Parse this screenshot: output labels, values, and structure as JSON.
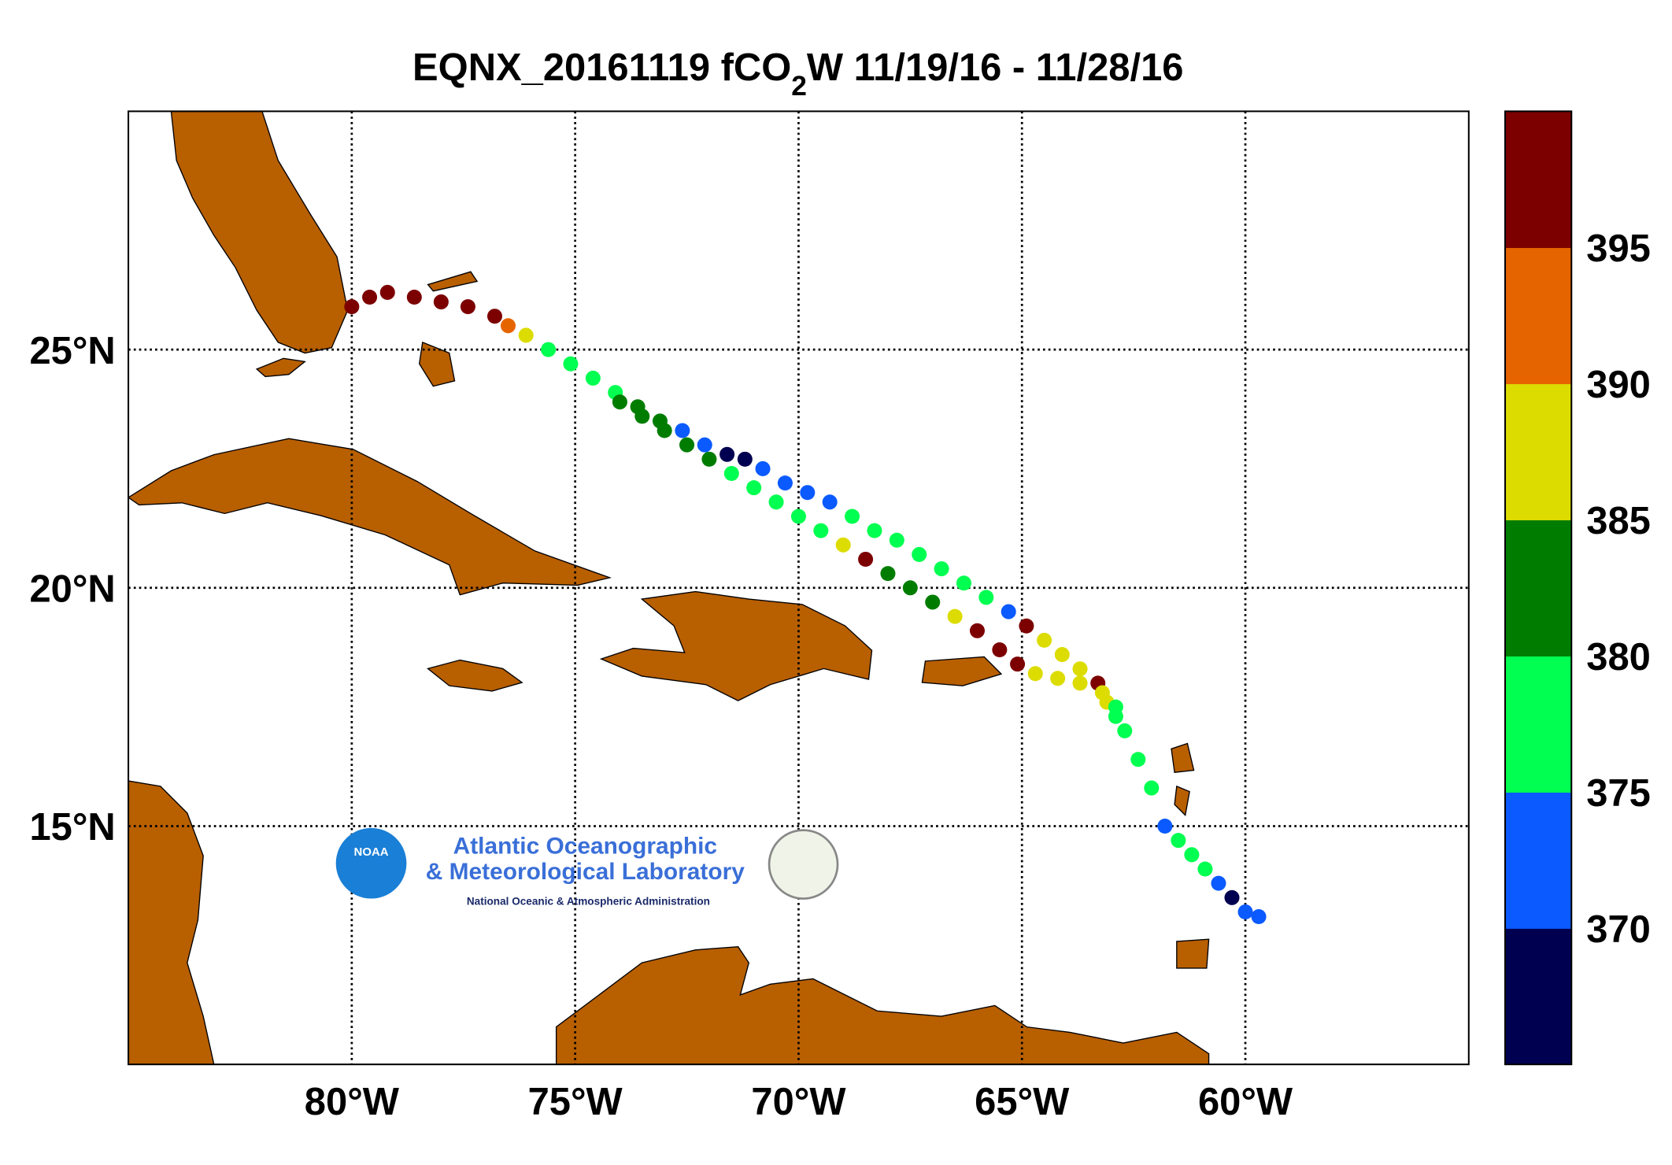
{
  "chart_data": {
    "type": "track-map",
    "title": {
      "prefix": "EQNX_20161119 fCO",
      "subscript": "2",
      "suffix": "W 11/19/16 - 11/28/16"
    },
    "xlim": [
      -85,
      -55
    ],
    "ylim": [
      10,
      30
    ],
    "xticks": [
      {
        "value": -80,
        "label": "80°W"
      },
      {
        "value": -75,
        "label": "75°W"
      },
      {
        "value": -70,
        "label": "70°W"
      },
      {
        "value": -65,
        "label": "65°W"
      },
      {
        "value": -60,
        "label": "60°W"
      }
    ],
    "yticks": [
      {
        "value": 15,
        "label": "15°N"
      },
      {
        "value": 20,
        "label": "20°N"
      },
      {
        "value": 25,
        "label": "25°N"
      }
    ],
    "grid": true,
    "colorbar": {
      "lim": [
        365,
        400
      ],
      "ticks": [
        370,
        375,
        380,
        385,
        390,
        395
      ],
      "colors": [
        "#000050",
        "#0a5aff",
        "#00ff50",
        "#007d00",
        "#dcdc00",
        "#e66400",
        "#7d0000"
      ]
    },
    "tracks": [
      {
        "lon": [
          -80.0,
          -79.6,
          -79.2,
          -78.6,
          -78.0,
          -77.4,
          -76.8,
          -76.5,
          -76.1,
          -75.6,
          -75.1,
          -74.6,
          -74.1,
          -73.6,
          -73.1,
          -72.6,
          -72.1,
          -71.6,
          -71.2,
          -70.8,
          -70.3,
          -69.8,
          -69.3,
          -68.8,
          -68.3,
          -67.8,
          -67.3,
          -66.8,
          -66.3,
          -65.8,
          -65.3,
          -64.9,
          -64.5,
          -64.1,
          -63.7,
          -63.3,
          -63.1,
          -62.9,
          -62.7,
          -62.4,
          -62.1,
          -61.8,
          -61.5,
          -61.2,
          -60.9,
          -60.6,
          -60.3,
          -60.0,
          -59.7
        ],
        "lat": [
          25.9,
          26.1,
          26.2,
          26.1,
          26.0,
          25.9,
          25.7,
          25.5,
          25.3,
          25.0,
          24.7,
          24.4,
          24.1,
          23.8,
          23.5,
          23.3,
          23.0,
          22.8,
          22.7,
          22.5,
          22.2,
          22.0,
          21.8,
          21.5,
          21.2,
          21.0,
          20.7,
          20.4,
          20.1,
          19.8,
          19.5,
          19.2,
          18.9,
          18.6,
          18.3,
          18.0,
          17.6,
          17.3,
          17.0,
          16.4,
          15.8,
          15.0,
          14.7,
          14.4,
          14.1,
          13.8,
          13.5,
          13.2,
          13.1
        ],
        "fco2": [
          397,
          398,
          398,
          397,
          397,
          397,
          397,
          392,
          388,
          377,
          377,
          377,
          377,
          382,
          382,
          372,
          372,
          367,
          367,
          372,
          372,
          372,
          372,
          377,
          377,
          377,
          377,
          377,
          377,
          377,
          372,
          397,
          388,
          388,
          388,
          397,
          388,
          377,
          377,
          377,
          377,
          372,
          377,
          377,
          377,
          372,
          367,
          372,
          372
        ]
      },
      {
        "lon": [
          -74.0,
          -73.5,
          -73.0,
          -72.5,
          -72.0,
          -71.5,
          -71.0,
          -70.5,
          -70.0,
          -69.5,
          -69.0,
          -68.5,
          -68.0,
          -67.5,
          -67.0,
          -66.5,
          -66.0,
          -65.5,
          -65.1,
          -64.7,
          -64.2,
          -63.7,
          -63.2,
          -62.9
        ],
        "lat": [
          23.9,
          23.6,
          23.3,
          23.0,
          22.7,
          22.4,
          22.1,
          21.8,
          21.5,
          21.2,
          20.9,
          20.6,
          20.3,
          20.0,
          19.7,
          19.4,
          19.1,
          18.7,
          18.4,
          18.2,
          18.1,
          18.0,
          17.8,
          17.5
        ],
        "fco2": [
          382,
          382,
          382,
          382,
          382,
          377,
          377,
          377,
          377,
          377,
          388,
          397,
          382,
          382,
          382,
          388,
          397,
          397,
          397,
          388,
          388,
          388,
          388,
          377
        ]
      }
    ]
  },
  "logo": {
    "badge": "NOAA",
    "line1": "Atlantic Oceanographic",
    "line2": "& Meteorological Laboratory",
    "line3": "National Oceanic & Atmospheric Administration"
  }
}
